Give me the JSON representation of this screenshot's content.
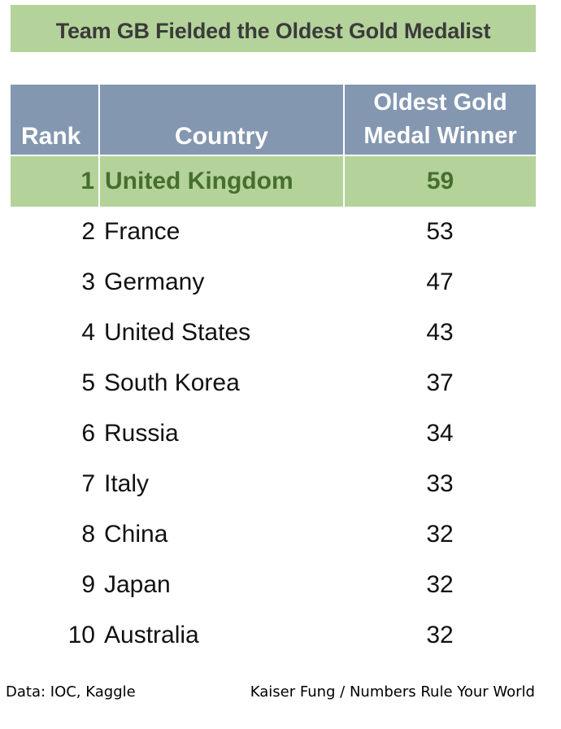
{
  "chart_data": {
    "type": "table",
    "title": "Team GB Fielded the Oldest Gold Medalist",
    "columns": [
      "Rank",
      "Country",
      "Oldest Gold Medal Winner"
    ],
    "rows": [
      {
        "rank": 1,
        "country": "United Kingdom",
        "age": 59,
        "highlight": true
      },
      {
        "rank": 2,
        "country": "France",
        "age": 53
      },
      {
        "rank": 3,
        "country": "Germany",
        "age": 47
      },
      {
        "rank": 4,
        "country": "United States",
        "age": 43
      },
      {
        "rank": 5,
        "country": "South Korea",
        "age": 37
      },
      {
        "rank": 6,
        "country": "Russia",
        "age": 34
      },
      {
        "rank": 7,
        "country": "Italy",
        "age": 33
      },
      {
        "rank": 8,
        "country": "China",
        "age": 32
      },
      {
        "rank": 9,
        "country": "Japan",
        "age": 32
      },
      {
        "rank": 10,
        "country": "Australia",
        "age": 32
      }
    ]
  },
  "header": {
    "rank": "Rank",
    "country": "Country",
    "age_line1": "Oldest Gold",
    "age_line2": "Medal Winner"
  },
  "footer": {
    "source": "Data: IOC, Kaggle",
    "credit": "Kaiser Fung / Numbers Rule Your World"
  },
  "colors": {
    "title_band": "#b4d39a",
    "header_fill": "#8497b1",
    "highlight_text": "#466e2f"
  }
}
